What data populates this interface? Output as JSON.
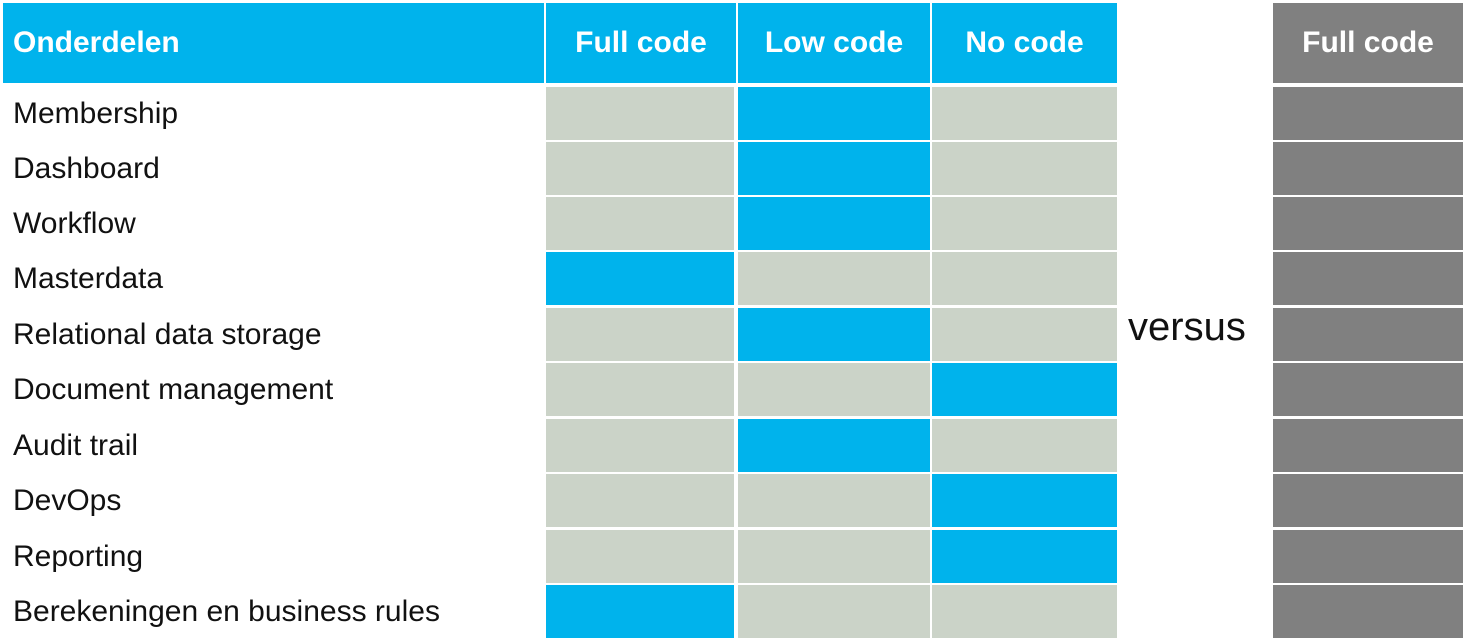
{
  "colors": {
    "accent": "#00b3ec",
    "inactive": "#cbd3c8",
    "right_column": "#808080",
    "header_text": "#ffffff"
  },
  "table": {
    "header": {
      "component": "Onderdelen",
      "columns": [
        "Full code",
        "Low code",
        "No code"
      ]
    },
    "rows": [
      {
        "label": "Membership",
        "active": "Low code"
      },
      {
        "label": "Dashboard",
        "active": "Low code"
      },
      {
        "label": "Workflow",
        "active": "Low code"
      },
      {
        "label": "Masterdata",
        "active": "Full code"
      },
      {
        "label": "Relational data storage",
        "active": "Low code"
      },
      {
        "label": "Document management",
        "active": "No code"
      },
      {
        "label": "Audit trail",
        "active": "Low code"
      },
      {
        "label": "DevOps",
        "active": "No code"
      },
      {
        "label": "Reporting",
        "active": "No code"
      },
      {
        "label": "Berekeningen en business rules",
        "active": "Full code"
      }
    ]
  },
  "versus_label": "versus",
  "right": {
    "header": "Full code"
  }
}
